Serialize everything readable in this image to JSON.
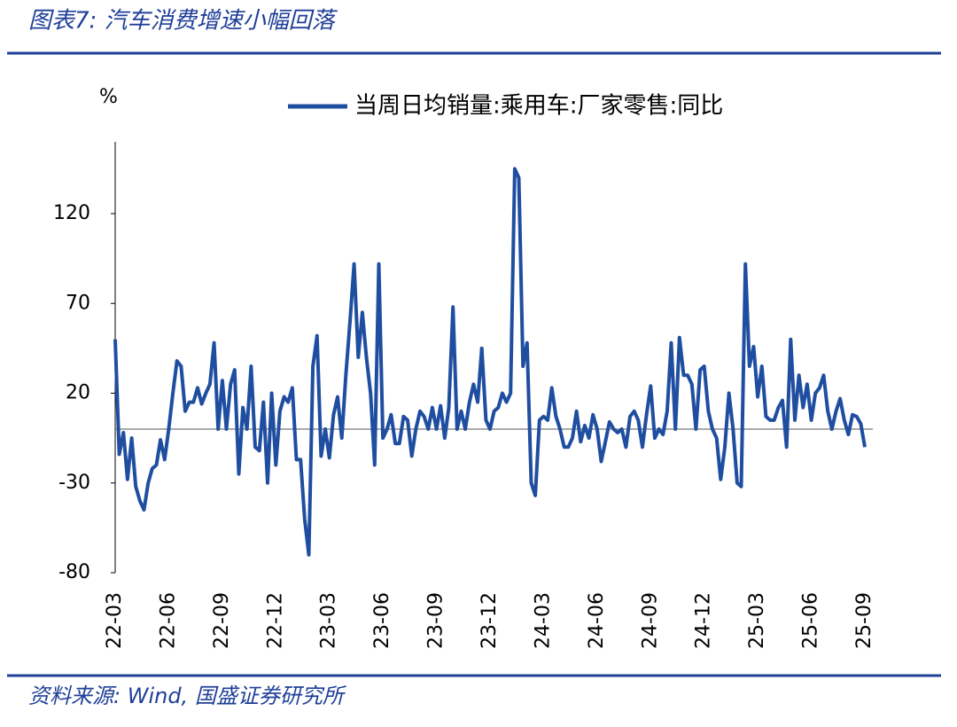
{
  "chart_data": {
    "type": "line",
    "title": "图表7: 汽车消费增速小幅回落",
    "y_label": "%",
    "source": "资料来源: Wind, 国盛证券研究所",
    "legend": "top",
    "ylim": [
      -80,
      160
    ],
    "yticks": [
      -80,
      -30,
      20,
      70,
      120
    ],
    "categories": [
      "22-03",
      null,
      null,
      null,
      null,
      null,
      null,
      null,
      null,
      null,
      null,
      null,
      null,
      "22-06",
      null,
      null,
      null,
      null,
      null,
      null,
      null,
      null,
      null,
      null,
      null,
      null,
      "22-09",
      null,
      null,
      null,
      null,
      null,
      null,
      null,
      null,
      null,
      null,
      null,
      null,
      "22-12",
      null,
      null,
      null,
      null,
      null,
      null,
      null,
      null,
      null,
      null,
      null,
      null,
      "23-03",
      null,
      null,
      null,
      null,
      null,
      null,
      null,
      null,
      null,
      null,
      null,
      null,
      "23-06",
      null,
      null,
      null,
      null,
      null,
      null,
      null,
      null,
      null,
      null,
      null,
      null,
      "23-09",
      null,
      null,
      null,
      null,
      null,
      null,
      null,
      null,
      null,
      null,
      null,
      null,
      "23-12",
      null,
      null,
      null,
      null,
      null,
      null,
      null,
      null,
      null,
      null,
      null,
      null,
      "24-03",
      null,
      null,
      null,
      null,
      null,
      null,
      null,
      null,
      null,
      null,
      null,
      null,
      "24-06",
      null,
      null,
      null,
      null,
      null,
      null,
      null,
      null,
      null,
      null,
      null,
      null,
      "24-09",
      null,
      null,
      null,
      null,
      null,
      null,
      null,
      null,
      null,
      null,
      null,
      null,
      "24-12",
      null,
      null,
      null,
      null,
      null,
      null,
      null,
      null,
      null,
      null,
      null,
      null,
      "25-03",
      null,
      null,
      null,
      null,
      null,
      null,
      null,
      null,
      null,
      null,
      null,
      null,
      "25-06",
      null,
      null,
      null,
      null,
      null,
      null,
      null,
      null,
      null,
      null,
      null,
      null,
      "25-09"
    ],
    "series": [
      {
        "name": "当周日均销量:乘用车:厂家零售:同比",
        "color": "#1f4ea1",
        "values": [
          50,
          -14,
          -2,
          -28,
          -5,
          -32,
          -40,
          -45,
          -30,
          -22,
          -20,
          -6,
          -17,
          0,
          20,
          38,
          35,
          10,
          15,
          15,
          23,
          14,
          20,
          25,
          48,
          0,
          27,
          0,
          25,
          33,
          -25,
          12,
          0,
          35,
          -10,
          -12,
          15,
          -30,
          20,
          -20,
          10,
          18,
          15,
          23,
          -17,
          -17,
          -50,
          -70,
          35,
          52,
          -15,
          0,
          -16,
          8,
          18,
          -5,
          30,
          60,
          92,
          40,
          65,
          40,
          20,
          -20,
          92,
          -5,
          0,
          8,
          -8,
          -8,
          7,
          5,
          -15,
          0,
          10,
          7,
          0,
          12,
          0,
          13,
          -5,
          12,
          68,
          0,
          10,
          0,
          15,
          25,
          15,
          45,
          5,
          0,
          10,
          12,
          20,
          15,
          20,
          145,
          140,
          35,
          48,
          -30,
          -37,
          5,
          7,
          5,
          23,
          7,
          0,
          -10,
          -10,
          -5,
          10,
          -7,
          2,
          -5,
          8,
          0,
          -18,
          -7,
          4,
          0,
          -2,
          0,
          -10,
          7,
          10,
          5,
          -10,
          8,
          24,
          -5,
          0,
          -3,
          10,
          48,
          0,
          51,
          30,
          30,
          25,
          0,
          33,
          35,
          10,
          0,
          -5,
          -28,
          -10,
          20,
          0,
          -30,
          -32,
          92,
          35,
          46,
          18,
          35,
          7,
          5,
          5,
          12,
          16,
          -10,
          50,
          5,
          30,
          12,
          25,
          5,
          20,
          23,
          30,
          10,
          0,
          10,
          17,
          5,
          -3,
          8,
          7,
          3,
          -10
        ]
      }
    ]
  }
}
